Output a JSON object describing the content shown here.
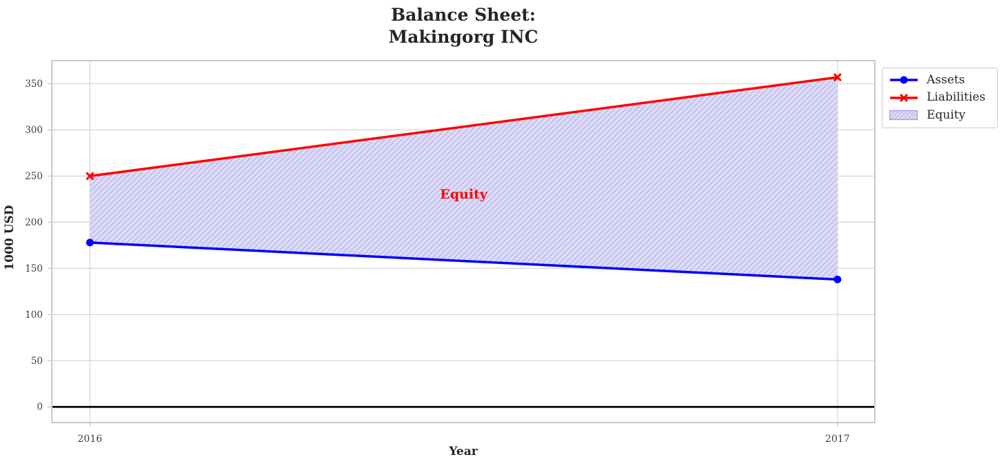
{
  "chart_data": {
    "type": "area",
    "title": "Balance Sheet:\nMakingorg INC",
    "xlabel": "Year",
    "ylabel": "1000 USD",
    "x": [
      2016,
      2017
    ],
    "xtick_labels": [
      "2016",
      "2017"
    ],
    "yticks": [
      0,
      50,
      100,
      150,
      200,
      250,
      300,
      350
    ],
    "ylim": [
      -17,
      375
    ],
    "xlim": [
      2015.949,
      2017.05
    ],
    "grid": true,
    "series": [
      {
        "name": "Assets",
        "values": [
          178,
          138
        ],
        "color": "#0000ff",
        "marker": "circle"
      },
      {
        "name": "Liabilities",
        "values": [
          250,
          357
        ],
        "color": "#ff0000",
        "marker": "x"
      }
    ],
    "fill_between": {
      "name": "Equity",
      "lower_series": "Assets",
      "upper_series": "Liabilities",
      "fill_color": "#dddcf6",
      "hatch_color": "#b9b8ed",
      "edge_color": "#9d9ce8",
      "hatch": "//"
    },
    "annotation": {
      "text": "Equity",
      "x": 2016.5,
      "y": 230,
      "color": "#ff0000"
    },
    "zero_line": {
      "y": 0,
      "color": "#000000"
    },
    "legend": {
      "entries": [
        "Assets",
        "Liabilities",
        "Equity"
      ],
      "position": "upper-right-outside"
    }
  }
}
